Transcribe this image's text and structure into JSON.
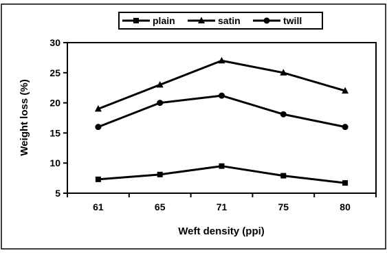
{
  "chart_data": {
    "type": "line",
    "categories": [
      "61",
      "65",
      "71",
      "75",
      "80"
    ],
    "series": [
      {
        "name": "plain",
        "marker": "square",
        "values": [
          7.3,
          8.1,
          9.5,
          7.9,
          6.7
        ]
      },
      {
        "name": "satin",
        "marker": "triangle",
        "values": [
          19,
          23,
          27,
          25,
          22
        ]
      },
      {
        "name": "twill",
        "marker": "circle",
        "values": [
          16,
          20,
          21.2,
          18.1,
          16
        ]
      }
    ],
    "xlabel": "Weft density (ppi)",
    "ylabel": "Weight loss (%)",
    "ylim": [
      5,
      30
    ],
    "yticks": [
      5,
      10,
      15,
      20,
      25,
      30
    ],
    "grid": false,
    "legend_position": "top",
    "colors": {
      "line": "#000000",
      "background": "#ffffff"
    }
  }
}
